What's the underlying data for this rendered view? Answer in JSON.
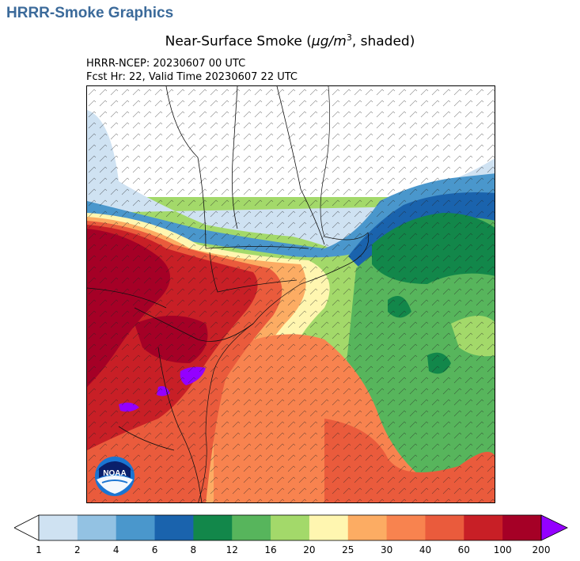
{
  "header": {
    "title": "HRRR-Smoke Graphics"
  },
  "map": {
    "title_prefix": "Near-Surface Smoke (",
    "title_unit": "μg/m",
    "title_exp": "3",
    "title_suffix": ", shaded)",
    "run_line": "HRRR-NCEP: 20230607 00 UTC",
    "valid_line": "Fcst Hr: 22, Valid Time 20230607 22 UTC",
    "logo_text": "NOAA"
  },
  "colorbar": {
    "labels": [
      "1",
      "2",
      "4",
      "6",
      "8",
      "12",
      "16",
      "20",
      "25",
      "30",
      "40",
      "60",
      "100",
      "200"
    ],
    "colors": [
      "#cfe2f2",
      "#93c2e3",
      "#4a97cc",
      "#1a63ad",
      "#12874a",
      "#57b55c",
      "#a3d96a",
      "#fff6b0",
      "#fcac63",
      "#f8834f",
      "#ea5b3c",
      "#c81f26",
      "#a50026"
    ],
    "under_color": "#ffffff",
    "over_color": "#9400ff"
  }
}
